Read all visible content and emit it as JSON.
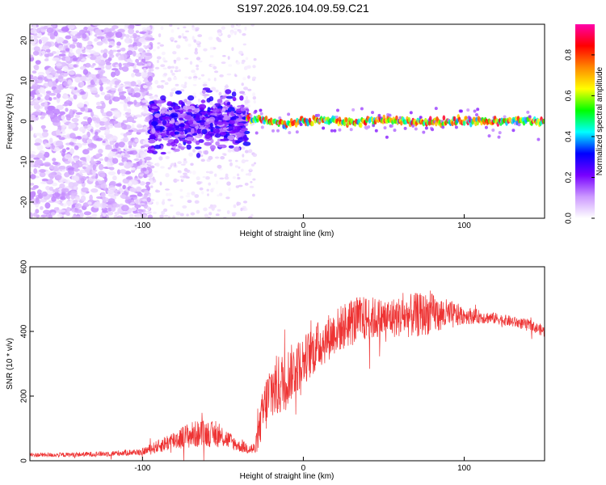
{
  "chart_data": [
    {
      "type": "heatmap",
      "title": "S197.2026.104.09.59.C21",
      "xlabel": "Height of straight line (km)",
      "ylabel": "Frequency (Hz)",
      "xlim": [
        -170,
        150
      ],
      "ylim": [
        -24,
        24
      ],
      "xticks": [
        -100,
        0,
        100
      ],
      "yticks": [
        -20,
        -10,
        0,
        10,
        20
      ],
      "colorbar": {
        "label": "Normalized spectral amplitude",
        "range": [
          0,
          0.95
        ],
        "ticks": [
          0.0,
          0.2,
          0.4,
          0.6,
          0.8
        ],
        "colors": [
          "#ffffff",
          "#cc99ff",
          "#7700ff",
          "#0000ff",
          "#00ffff",
          "#00ff00",
          "#ffff00",
          "#ff8800",
          "#ff0000",
          "#ff00aa"
        ]
      },
      "regions": [
        {
          "x_range": [
            -170,
            -100
          ],
          "freq_range": [
            -24,
            24
          ],
          "amplitude": 0.05,
          "description_level": "noise"
        },
        {
          "x_range": [
            -95,
            -35
          ],
          "freq_range": [
            -6,
            5
          ],
          "amplitude": 0.15,
          "description_level": "scattered"
        },
        {
          "x_range": [
            -35,
            150
          ],
          "freq_center": 0,
          "freq_halfwidth": 1.5,
          "amplitude": 0.6,
          "description_level": "band"
        }
      ]
    },
    {
      "type": "line",
      "xlabel": "Height of straight line (km)",
      "ylabel": "SNR (10 * v/v)",
      "xlim": [
        -170,
        150
      ],
      "ylim": [
        0,
        600
      ],
      "xticks": [
        -100,
        0,
        100
      ],
      "yticks": [
        0,
        200,
        400,
        600
      ],
      "series_color": "#ee3333",
      "envelope": {
        "x": [
          -170,
          -150,
          -120,
          -100,
          -90,
          -80,
          -70,
          -60,
          -50,
          -40,
          -30,
          -25,
          -20,
          -15,
          -10,
          0,
          10,
          20,
          30,
          40,
          50,
          60,
          70,
          80,
          90,
          100,
          110,
          120,
          130,
          140,
          150
        ],
        "mean": [
          18,
          18,
          22,
          28,
          45,
          65,
          80,
          85,
          75,
          45,
          35,
          150,
          220,
          230,
          260,
          310,
          360,
          400,
          430,
          440,
          440,
          445,
          450,
          455,
          450,
          450,
          445,
          440,
          430,
          420,
          400
        ],
        "spread": [
          10,
          10,
          12,
          15,
          30,
          45,
          60,
          60,
          50,
          25,
          30,
          120,
          150,
          140,
          130,
          110,
          110,
          100,
          110,
          100,
          90,
          90,
          100,
          90,
          70,
          40,
          30,
          25,
          25,
          25,
          25
        ]
      }
    }
  ]
}
